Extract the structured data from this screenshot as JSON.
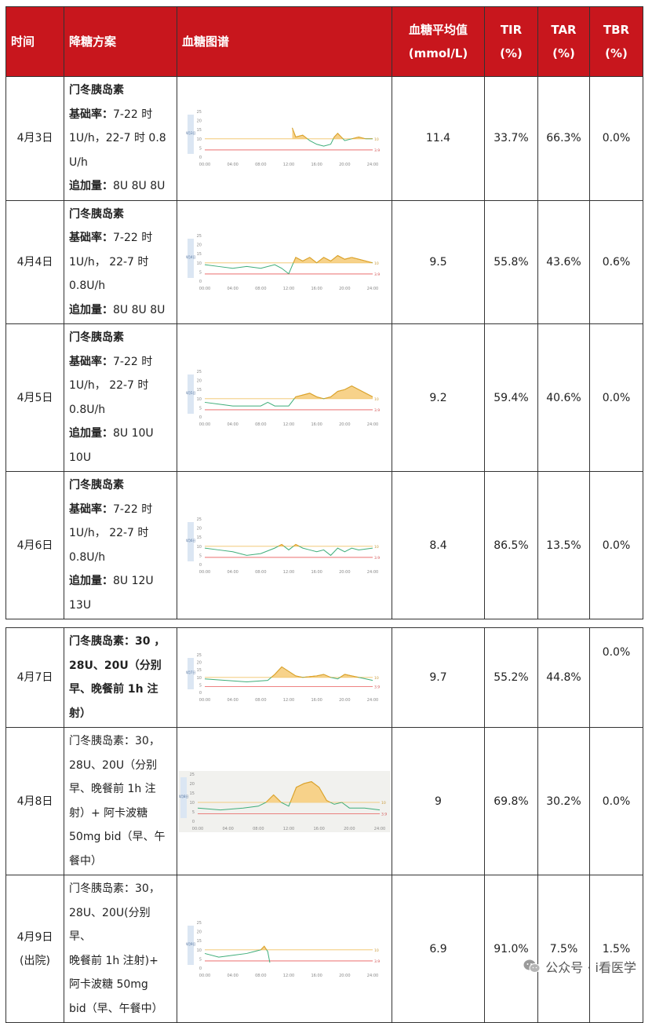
{
  "header": {
    "time": "时间",
    "plan": "降糖方案",
    "chart": "血糖图谱",
    "mean_line1": "血糖平均值",
    "mean_line2": "(mmol/L)",
    "tir_line1": "TIR",
    "tir_line2": "(%)",
    "tar_line1": "TAR",
    "tar_line2": "(%)",
    "tbr_line1": "TBR",
    "tbr_line2": "(%)"
  },
  "chart_common": {
    "x_ticks": [
      "00:00",
      "04:00",
      "08:00",
      "12:00",
      "16:00",
      "20:00",
      "24:00"
    ],
    "y_ticks": [
      "25",
      "20",
      "15",
      "10",
      "5",
      "0"
    ],
    "upper_label": "10",
    "lower_label": "3.9",
    "colors": {
      "in_range": "#3fae7a",
      "above": "#f0a020",
      "fill": "#f7d28a",
      "upper_line": "#f0c060",
      "lower_line": "#e85a5a"
    }
  },
  "rows": [
    {
      "date": "4月3日",
      "plan_title": "门冬胰岛素",
      "basal_label": "基础率：",
      "basal_text": "7-22 时 1U/h，22-7 时 0.8 U/h",
      "bolus_label": "追加量：",
      "bolus_text": "8U 8U 8U",
      "mean": "11.4",
      "tir": "33.7%",
      "tar": "66.3%",
      "tbr": "0.0%",
      "side_label": "4月3日",
      "cgm": [
        [
          12.5,
          16
        ],
        [
          13,
          11
        ],
        [
          14,
          12
        ],
        [
          15,
          9
        ],
        [
          16,
          7
        ],
        [
          17,
          6
        ],
        [
          18,
          7
        ],
        [
          18.5,
          11
        ],
        [
          19,
          13
        ],
        [
          20,
          9
        ],
        [
          21,
          10
        ],
        [
          22,
          11
        ],
        [
          23,
          10
        ],
        [
          24,
          10
        ]
      ]
    },
    {
      "date": "4月4日",
      "plan_title": "门冬胰岛素",
      "basal_label": "基础率：",
      "basal_text": "7-22 时 1U/h， 22-7 时 0.8U/h",
      "bolus_label": "追加量：",
      "bolus_text": "8U 8U 8U",
      "mean": "9.5",
      "tir": "55.8%",
      "tar": "43.6%",
      "tbr": "0.6%",
      "side_label": "4月4日",
      "cgm": [
        [
          0,
          9
        ],
        [
          2,
          8
        ],
        [
          4,
          7
        ],
        [
          6,
          8
        ],
        [
          8,
          7
        ],
        [
          10,
          9
        ],
        [
          11,
          7
        ],
        [
          12,
          4
        ],
        [
          13,
          13
        ],
        [
          14,
          11
        ],
        [
          15,
          13
        ],
        [
          16,
          10
        ],
        [
          17,
          13
        ],
        [
          18,
          11
        ],
        [
          19,
          14
        ],
        [
          20,
          12
        ],
        [
          21,
          13
        ],
        [
          22,
          12
        ],
        [
          24,
          10
        ]
      ]
    },
    {
      "date": "4月5日",
      "plan_title": "门冬胰岛素",
      "basal_label": "基础率：",
      "basal_text": "7-22 时 1U/h， 22-7 时 0.8U/h",
      "bolus_label": "追加量：",
      "bolus_text": "8U 10U 10U",
      "mean": "9.2",
      "tir": "59.4%",
      "tar": "40.6%",
      "tbr": "0.0%",
      "side_label": "4月5日",
      "cgm": [
        [
          0,
          8
        ],
        [
          2,
          7
        ],
        [
          4,
          6
        ],
        [
          6,
          6
        ],
        [
          8,
          6
        ],
        [
          9,
          8
        ],
        [
          10,
          6
        ],
        [
          12,
          6
        ],
        [
          13,
          11
        ],
        [
          14,
          12
        ],
        [
          15,
          13
        ],
        [
          16,
          11
        ],
        [
          17,
          10
        ],
        [
          18,
          11
        ],
        [
          19,
          14
        ],
        [
          20,
          15
        ],
        [
          21,
          17
        ],
        [
          22,
          15
        ],
        [
          23,
          13
        ],
        [
          24,
          11
        ]
      ]
    },
    {
      "date": "4月6日",
      "plan_title": "门冬胰岛素",
      "basal_label": "基础率：",
      "basal_text": "7-22 时 1U/h， 22-7 时 0.8U/h",
      "bolus_label": "追加量：",
      "bolus_text": "8U 12U 13U",
      "mean": "8.4",
      "tir": "86.5%",
      "tar": "13.5%",
      "tbr": "0.0%",
      "side_label": "4月6日",
      "cgm": [
        [
          0,
          9
        ],
        [
          2,
          8
        ],
        [
          4,
          7
        ],
        [
          6,
          5
        ],
        [
          8,
          6
        ],
        [
          10,
          9
        ],
        [
          11,
          11
        ],
        [
          12,
          8
        ],
        [
          13,
          11
        ],
        [
          14,
          9
        ],
        [
          15,
          8
        ],
        [
          16,
          7
        ],
        [
          17,
          8
        ],
        [
          18,
          5
        ],
        [
          19,
          9
        ],
        [
          20,
          7
        ],
        [
          21,
          9
        ],
        [
          22,
          8
        ],
        [
          24,
          9
        ]
      ]
    },
    {
      "date": "4月7日",
      "plan_line1_bold": "门冬胰岛素：30 ，",
      "plan_line2_bold": "28U、20U（分别",
      "plan_line3_bold": "早、晚餐前 1h 注",
      "plan_line4_bold": "射）",
      "mean": "9.7",
      "tir": "55.2%",
      "tar": "44.8%",
      "tbr": "0.0%",
      "side_label": "4月7日",
      "cgm": [
        [
          0,
          9
        ],
        [
          3,
          8
        ],
        [
          6,
          7
        ],
        [
          9,
          8
        ],
        [
          10,
          12
        ],
        [
          11,
          17
        ],
        [
          12,
          14
        ],
        [
          13,
          11
        ],
        [
          14,
          10
        ],
        [
          16,
          11
        ],
        [
          17,
          12
        ],
        [
          18,
          10
        ],
        [
          19,
          9
        ],
        [
          20,
          12
        ],
        [
          21,
          11
        ],
        [
          22,
          10
        ],
        [
          24,
          8
        ]
      ]
    },
    {
      "date": "4月8日",
      "plan_line1": "门冬胰岛素：30，",
      "plan_line2": "28U、20U（分别",
      "plan_line3": "早、晚餐前 1h 注",
      "plan_line4": "射）+ 阿卡波糖",
      "plan_line5": "50mg bid（早、午",
      "plan_line6": "餐中）",
      "mean": "9",
      "tir": "69.8%",
      "tar": "30.2%",
      "tbr": "0.0%",
      "side_label": "4月8日",
      "cgm": [
        [
          0,
          7
        ],
        [
          3,
          6
        ],
        [
          6,
          7
        ],
        [
          8,
          8
        ],
        [
          9,
          10
        ],
        [
          10,
          14
        ],
        [
          11,
          10
        ],
        [
          12,
          8
        ],
        [
          13,
          18
        ],
        [
          14,
          20
        ],
        [
          15,
          21
        ],
        [
          16,
          18
        ],
        [
          17,
          11
        ],
        [
          18,
          9
        ],
        [
          19,
          10
        ],
        [
          20,
          7
        ],
        [
          22,
          7
        ],
        [
          24,
          6
        ]
      ]
    },
    {
      "date_line1": "4月9日",
      "date_line2": "(出院)",
      "plan_line1": "门冬胰岛素：30，",
      "plan_line2": "28U、20U(分别早、",
      "plan_line3": "晚餐前 1h 注射)+",
      "plan_line4": "阿卡波糖 50mg",
      "plan_line5": "bid（早、午餐中）",
      "mean": "6.9",
      "tir": "91.0%",
      "tar": "7.5%",
      "tbr": "1.5%",
      "side_label": "4月9日",
      "cgm": [
        [
          0,
          8
        ],
        [
          2,
          6
        ],
        [
          4,
          7
        ],
        [
          6,
          8
        ],
        [
          7,
          9
        ],
        [
          8,
          10
        ],
        [
          8.5,
          12
        ],
        [
          9,
          9
        ],
        [
          9.3,
          3
        ]
      ]
    }
  ],
  "watermark": {
    "text": "公众号 · i看医学",
    "icon": "wechat-icon"
  }
}
